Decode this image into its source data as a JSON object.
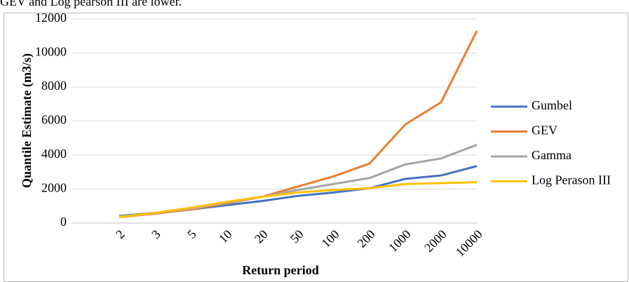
{
  "caption": "GEV and Log pearson III are lower.",
  "chart_data": {
    "type": "line",
    "y_label": "Quantile Estimate (m3/s)",
    "x_label": "Return period",
    "categories": [
      "2",
      "3",
      "5",
      "10",
      "20",
      "50",
      "100",
      "200",
      "1000",
      "2000",
      "10000"
    ],
    "series": [
      {
        "name": "Gumbel",
        "color": "#4472c4",
        "values": [
          420,
          600,
          800,
          1050,
          1300,
          1600,
          1800,
          2050,
          2600,
          2800,
          3350
        ]
      },
      {
        "name": "GEV",
        "color": "#ed7d31",
        "values": [
          350,
          550,
          800,
          1150,
          1550,
          2150,
          2750,
          3500,
          5800,
          7100,
          11300
        ]
      },
      {
        "name": "Gamma",
        "color": "#a5a5a5",
        "values": [
          380,
          580,
          850,
          1200,
          1550,
          1950,
          2300,
          2650,
          3450,
          3800,
          4600
        ]
      },
      {
        "name": "Log Perason III",
        "color": "#ffc000",
        "values": [
          350,
          600,
          900,
          1250,
          1550,
          1800,
          1950,
          2050,
          2300,
          2350,
          2400
        ]
      }
    ],
    "ylim": [
      0,
      12000
    ],
    "yticks": [
      0,
      2000,
      4000,
      6000,
      8000,
      10000,
      12000
    ],
    "grid": true,
    "legend": "right"
  }
}
